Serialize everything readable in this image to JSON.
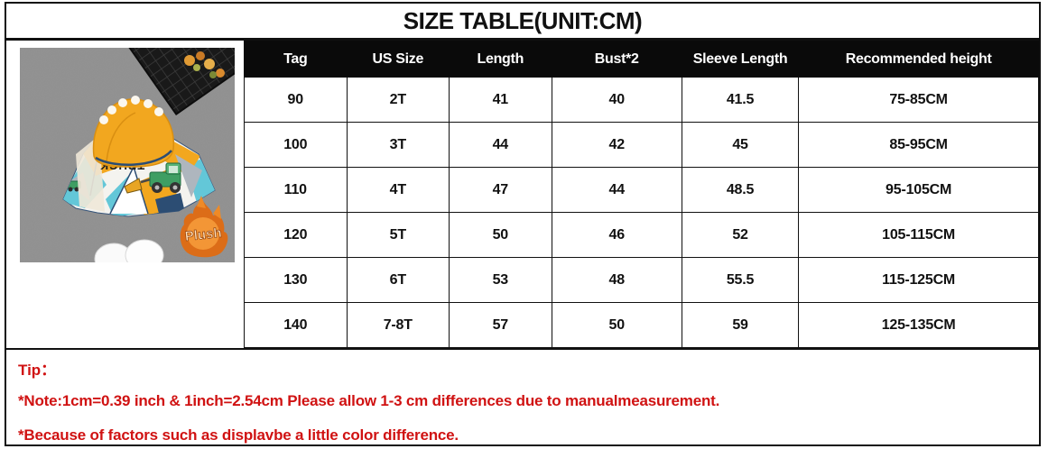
{
  "title": "SIZE TABLE(UNIT:CM)",
  "product_photo": {
    "description": "yellow hooded kids truck-print jacket flat lay on gray carpet",
    "jacket_print": "TRUCK",
    "badge_label": "Plush"
  },
  "table": {
    "headers": [
      "Tag",
      "US Size",
      "Length",
      "Bust*2",
      "Sleeve Length",
      "Recommended height"
    ],
    "rows": [
      [
        "90",
        "2T",
        "41",
        "40",
        "41.5",
        "75-85CM"
      ],
      [
        "100",
        "3T",
        "44",
        "42",
        "45",
        "85-95CM"
      ],
      [
        "110",
        "4T",
        "47",
        "44",
        "48.5",
        "95-105CM"
      ],
      [
        "120",
        "5T",
        "50",
        "46",
        "52",
        "105-115CM"
      ],
      [
        "130",
        "6T",
        "53",
        "48",
        "55.5",
        "115-125CM"
      ],
      [
        "140",
        "7-8T",
        "57",
        "50",
        "59",
        "125-135CM"
      ]
    ]
  },
  "tips": {
    "label": "Tip：",
    "note": "*Note:1cm=0.39 inch & 1inch=2.54cm Please allow 1-3 cm differences due to manualmeasurement.",
    "color_note": "*Because of factors such as displavbe a little color difference."
  },
  "colors": {
    "tip_red": "#d01212",
    "header_bg": "#0a0a0a",
    "header_text": "#ffffff",
    "jacket_yellow": "#f2a71f",
    "photo_bg": "#939393"
  }
}
